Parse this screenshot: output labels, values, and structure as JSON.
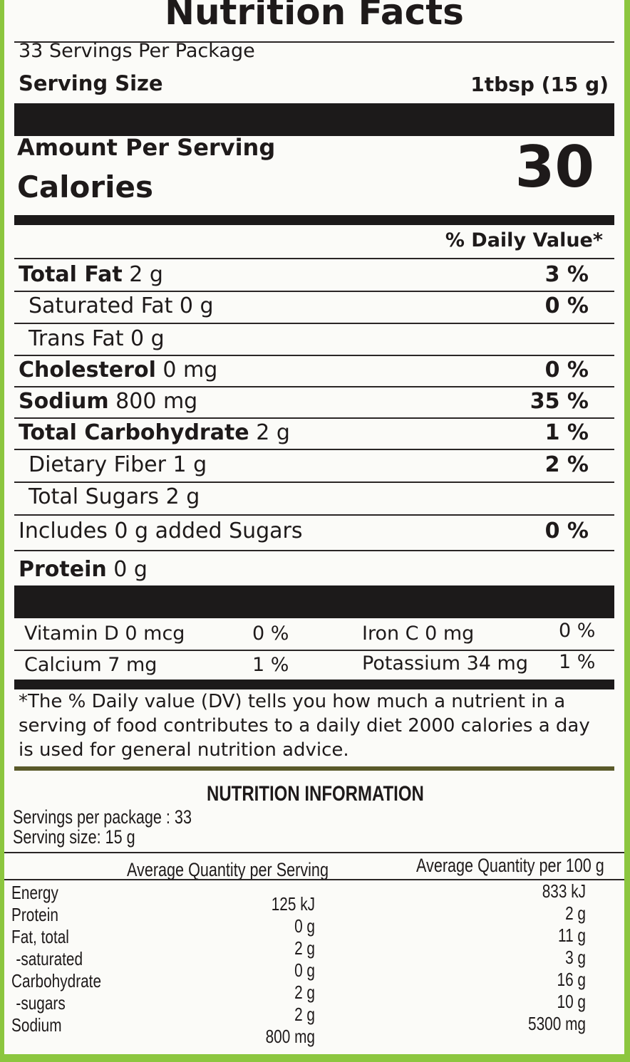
{
  "facts": {
    "title": "Nutrition Facts",
    "servings_per_package": "33 Servings Per Package",
    "serving_size_label": "Serving Size",
    "serving_size_value": "1tbsp (15 g)",
    "amount_per_serving": "Amount Per Serving",
    "calories_label": "Calories",
    "calories_value": "30",
    "daily_value_header": "% Daily Value*",
    "rows": [
      {
        "label": "Total Fat",
        "amount": "2 g",
        "dv": "3 %"
      },
      {
        "label": "Saturated Fat",
        "amount": "0 g",
        "dv": "0 %"
      },
      {
        "label": "Trans Fat",
        "amount": "0 g",
        "dv": ""
      },
      {
        "label": "Cholesterol",
        "amount": "0 mg",
        "dv": "0 %"
      },
      {
        "label": "Sodium",
        "amount": "800 mg",
        "dv": "35 %"
      },
      {
        "label": "Total Carbohydrate",
        "amount": "2 g",
        "dv": "1 %"
      },
      {
        "label": "Dietary Fiber",
        "amount": "1 g",
        "dv": "2 %"
      },
      {
        "label": "Total Sugars",
        "amount": "2 g",
        "dv": ""
      },
      {
        "label": "Includes 0 g added Sugars",
        "amount": "",
        "dv": "0 %"
      },
      {
        "label": "Protein",
        "amount": "0 g",
        "dv": ""
      }
    ],
    "vitamins": [
      {
        "label": "Vitamin D 0 mcg",
        "dv": "0 %"
      },
      {
        "label": "Iron C 0 mg",
        "dv": "0 %"
      },
      {
        "label": "Calcium 7 mg",
        "dv": "1 %"
      },
      {
        "label": "Potassium 34 mg",
        "dv": "1 %"
      }
    ],
    "footnote": "*The % Daily value (DV) tells you how much a nutrient in a serving of food contributes to a daily diet 2000 calories a day is used for general nutrition advice."
  },
  "info": {
    "title": "NUTRITION INFORMATION",
    "servings_per_package": "Servings per package : 33",
    "serving_size": "Serving size: 15 g",
    "col_serving": "Average Quantity per Serving",
    "col_100g": "Average Quantity per 100 g",
    "labels": [
      "Energy",
      "Protein",
      "Fat, total",
      "-saturated",
      "Carbohydrate",
      "-sugars",
      "Sodium"
    ],
    "per_serving": [
      "125 kJ",
      "0 g",
      "2 g",
      "0 g",
      "2 g",
      "2 g",
      "800 mg"
    ],
    "per_100g": [
      "833 kJ",
      "2 g",
      "11 g",
      "3 g",
      "16 g",
      "10 g",
      "5300 mg"
    ]
  }
}
